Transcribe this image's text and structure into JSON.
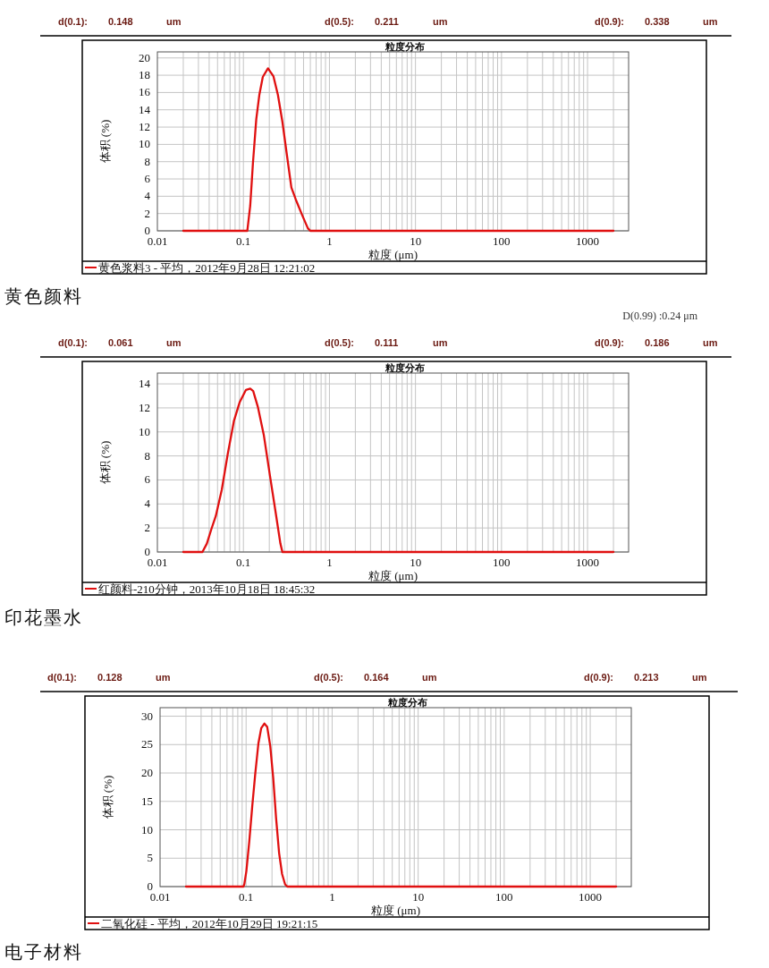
{
  "chart_data": [
    {
      "type": "line",
      "title": "粒度分布",
      "xlabel": "粒度 (μm)",
      "ylabel": "体积 (%)",
      "log": "x",
      "xlim": [
        0.01,
        3000
      ],
      "xticks": [
        0.01,
        0.1,
        1,
        10,
        100,
        1000
      ],
      "ylim": [
        0,
        20.7
      ],
      "yticks": [
        0,
        2,
        4,
        6,
        8,
        10,
        12,
        14,
        16,
        18,
        20
      ],
      "grid": true,
      "legend": "bottom",
      "series": [
        {
          "name": "黄色浆料3 - 平均，2012年9月28日 12:21:02",
          "color": "#e01010",
          "x": [
            0.02,
            0.111,
            0.12,
            0.129,
            0.141,
            0.153,
            0.168,
            0.193,
            0.223,
            0.252,
            0.284,
            0.32,
            0.361,
            0.407,
            0.478,
            0.561,
            0.598,
            2000
          ],
          "values": [
            0,
            0,
            2.9,
            7.8,
            12.9,
            15.7,
            17.8,
            18.8,
            17.9,
            15.7,
            12.6,
            8.8,
            5.0,
            3.6,
            1.9,
            0.3,
            0,
            0
          ]
        }
      ],
      "annotations": [
        "d(0.1): 0.148 um",
        "d(0.5): 0.211 um",
        "d(0.9): 0.338 um",
        "黄色颜料"
      ]
    },
    {
      "type": "line",
      "title": "粒度分布",
      "xlabel": "粒度 (μm)",
      "ylabel": "体积 (%)",
      "log": "x",
      "xlim": [
        0.01,
        3000
      ],
      "xticks": [
        0.01,
        0.1,
        1,
        10,
        100,
        1000
      ],
      "ylim": [
        0,
        14.9
      ],
      "yticks": [
        0,
        2,
        4,
        6,
        8,
        10,
        12,
        14
      ],
      "grid": true,
      "legend": "bottom",
      "series": [
        {
          "name": "红颜料-210分钟，2013年10月18日 18:45:32",
          "color": "#e01010",
          "x": [
            0.02,
            0.0334,
            0.0376,
            0.0424,
            0.0478,
            0.0561,
            0.0659,
            0.0775,
            0.0908,
            0.107,
            0.12,
            0.13,
            0.147,
            0.173,
            0.203,
            0.238,
            0.269,
            0.284,
            2000
          ],
          "values": [
            0,
            0,
            0.7,
            1.9,
            3.0,
            5.2,
            8.2,
            10.9,
            12.5,
            13.5,
            13.6,
            13.4,
            12.1,
            9.7,
            6.4,
            3.2,
            0.7,
            0,
            0
          ]
        }
      ],
      "annotations": [
        "d(0.1): 0.061 um",
        "d(0.5): 0.111 um",
        "d(0.9): 0.186 um",
        "印花墨水",
        "D(0.99) :0.24 μm"
      ]
    },
    {
      "type": "line",
      "title": "粒度分布",
      "xlabel": "粒度 (μm)",
      "ylabel": "体积 (%)",
      "log": "x",
      "xlim": [
        0.01,
        3000
      ],
      "xticks": [
        0.01,
        0.1,
        1,
        10,
        100,
        1000
      ],
      "ylim": [
        0,
        31.5
      ],
      "yticks": [
        0,
        5,
        10,
        15,
        20,
        25,
        30
      ],
      "grid": true,
      "legend": "bottom",
      "series": [
        {
          "name": "二氧化硅 - 平均，2012年10月29日 19:21:15",
          "color": "#e01010",
          "x": [
            0.02,
            0.0931,
            0.0953,
            0.1007,
            0.109,
            0.118,
            0.128,
            0.139,
            0.15,
            0.163,
            0.176,
            0.191,
            0.207,
            0.223,
            0.242,
            0.262,
            0.284,
            0.301,
            2000
          ],
          "values": [
            0,
            0,
            0.4,
            2.7,
            8.0,
            14.2,
            20.0,
            25.2,
            27.9,
            28.7,
            28.1,
            24.7,
            19.0,
            12.1,
            5.9,
            2.2,
            0.4,
            0,
            0
          ]
        }
      ],
      "annotations": [
        "d(0.1): 0.128 um",
        "d(0.5): 0.164 um",
        "d(0.9): 0.213 um",
        "电子材料"
      ]
    }
  ]
}
